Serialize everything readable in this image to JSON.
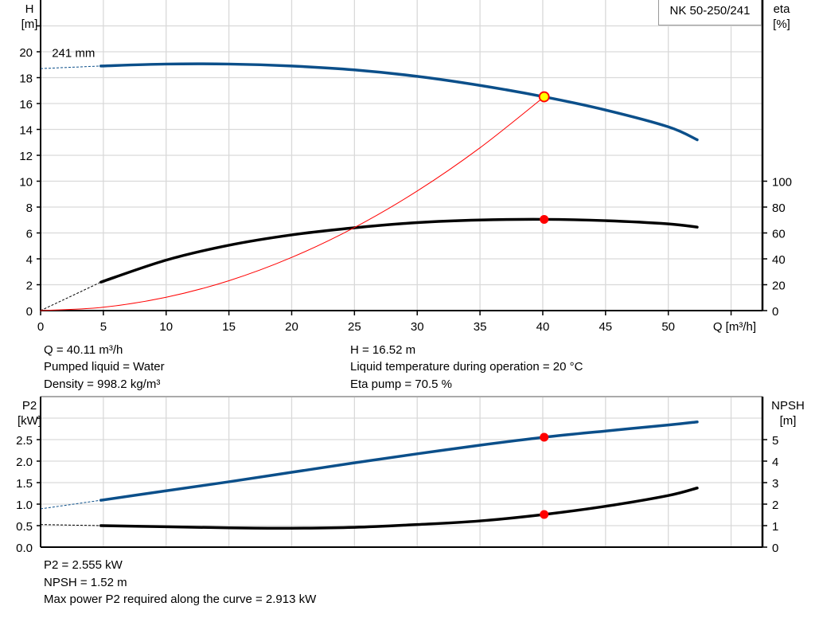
{
  "colors": {
    "head": "#0b4f8a",
    "eta": "#000000",
    "system": "#ff0000",
    "p2": "#0b4f8a",
    "npsh": "#000000",
    "grid": "#d9d9d9",
    "duty_point": "#ff0000",
    "duty_point_fill": "#ffff00"
  },
  "legend": {
    "pump": "NK 50-250/241"
  },
  "info_top": {
    "q": "Q = 40.11 m³/h",
    "liquid": "Pumped liquid = Water",
    "density": "Density = 998.2 kg/m³",
    "h": "H = 16.52 m",
    "temp": "Liquid temperature during operation = 20 °C",
    "eta": "Eta pump = 70.5 %"
  },
  "info_bottom": {
    "p2": "P2 = 2.555 kW",
    "npsh": "NPSH = 1.52 m",
    "max_power": "Max power P2 required along the curve = 2.913 kW"
  },
  "chart_data": [
    {
      "type": "line",
      "xlabel": "Q [m³/h]",
      "ylabel": "H\n[m]",
      "y2label": "eta\n[%]",
      "xlim": [
        0,
        57.5
      ],
      "ylim": [
        0,
        24
      ],
      "y2lim": [
        0,
        240
      ],
      "xticks": [
        0,
        5,
        10,
        15,
        20,
        25,
        30,
        35,
        40,
        45,
        50
      ],
      "yticks": [
        0,
        2,
        4,
        6,
        8,
        10,
        12,
        14,
        16,
        18,
        20
      ],
      "y2ticks": [
        0,
        20,
        40,
        60,
        80,
        100
      ],
      "grid": true,
      "annotation": "241 mm",
      "series": [
        {
          "id": "head",
          "axis": "y",
          "x": [
            4.8,
            10,
            15,
            20,
            25,
            30,
            35,
            40.11,
            45,
            50,
            52.3
          ],
          "y": [
            18.9,
            19.05,
            19.05,
            18.9,
            18.6,
            18.1,
            17.4,
            16.52,
            15.5,
            14.2,
            13.2
          ],
          "extrapolated": {
            "x": [
              0,
              4.8
            ],
            "y": [
              18.7,
              18.9
            ]
          }
        },
        {
          "id": "eta",
          "axis": "y2",
          "x": [
            4.8,
            10,
            15,
            20,
            25,
            30,
            35,
            40.11,
            45,
            50,
            52.3
          ],
          "y": [
            22,
            39,
            50.5,
            58.5,
            64,
            68,
            70,
            70.5,
            69.5,
            67,
            64.5
          ],
          "extrapolated": {
            "x": [
              0,
              4.8
            ],
            "y": [
              0,
              22
            ]
          }
        },
        {
          "id": "system",
          "axis": "y",
          "x": [
            0,
            5,
            10,
            15,
            20,
            25,
            30,
            35,
            40.11
          ],
          "y": [
            0,
            0.26,
            1.03,
            2.31,
            4.11,
            6.42,
            9.24,
            12.58,
            16.52
          ]
        }
      ],
      "duty_points": [
        {
          "series": "head",
          "x": 40.11,
          "y": 16.52,
          "style": "yellow"
        },
        {
          "series": "eta",
          "x": 40.11,
          "y": 70.5,
          "style": "red"
        }
      ]
    },
    {
      "type": "line",
      "ylabel": "P2\n[kW]",
      "y2label": "NPSH\n[m]",
      "xlim": [
        0,
        57.5
      ],
      "ylim": [
        0,
        3.5
      ],
      "y2lim": [
        0,
        7
      ],
      "yticks": [
        "0.0",
        "0.5",
        "1.0",
        "1.5",
        "2.0",
        "2.5"
      ],
      "y2ticks": [
        0,
        1,
        2,
        3,
        4,
        5
      ],
      "grid": true,
      "series": [
        {
          "id": "p2",
          "axis": "y",
          "x": [
            4.8,
            10,
            15,
            20,
            25,
            30,
            35,
            40.11,
            45,
            50,
            52.3
          ],
          "y": [
            1.09,
            1.31,
            1.52,
            1.74,
            1.96,
            2.17,
            2.37,
            2.555,
            2.7,
            2.84,
            2.913
          ],
          "extrapolated": {
            "x": [
              0,
              4.8
            ],
            "y": [
              0.89,
              1.09
            ]
          }
        },
        {
          "id": "npsh",
          "axis": "y2",
          "x": [
            4.8,
            10,
            15,
            20,
            25,
            30,
            35,
            40.11,
            45,
            50,
            52.3
          ],
          "y": [
            1.0,
            0.95,
            0.9,
            0.88,
            0.92,
            1.05,
            1.22,
            1.52,
            1.9,
            2.4,
            2.75
          ],
          "extrapolated": {
            "x": [
              0,
              4.8
            ],
            "y": [
              1.05,
              1.0
            ]
          }
        }
      ],
      "duty_points": [
        {
          "series": "p2",
          "x": 40.11,
          "y": 2.555,
          "style": "red"
        },
        {
          "series": "npsh",
          "x": 40.11,
          "y": 1.52,
          "style": "red"
        }
      ]
    }
  ]
}
